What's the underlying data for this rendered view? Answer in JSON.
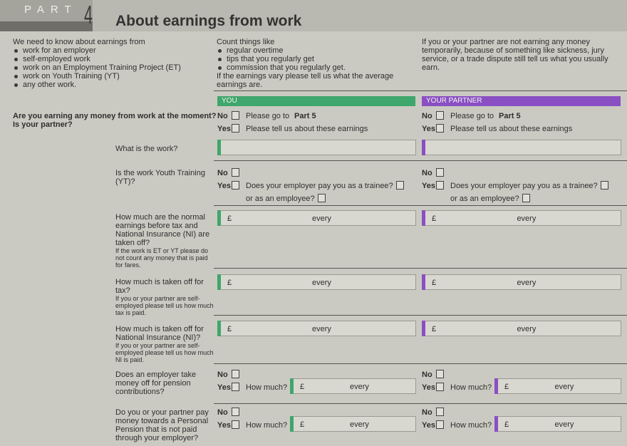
{
  "header": {
    "part": "PART",
    "number": "4",
    "title": "About earnings from work"
  },
  "intro": [
    {
      "lead": "We need to know about earnings from",
      "bullets": [
        "work for an employer",
        "self-employed work",
        "work on an Employment Training Project (ET)",
        "work on Youth Training (YT)",
        "any other work."
      ]
    },
    {
      "lead": "Count things like",
      "bullets": [
        "regular overtime",
        "tips that you regularly get",
        "commission that you regularly get."
      ],
      "tail": "If the earnings vary please tell us what the average earnings are."
    },
    {
      "lead": "If you or your partner are not earning any money temporarily, because of something like sickness, jury service, or a trade dispute still tell us what you usually earn."
    }
  ],
  "columns": [
    "YOU",
    "YOUR PARTNER"
  ],
  "labels": {
    "no": "No",
    "yes": "Yes",
    "pound": "£",
    "every": "every",
    "how_much": "How much?"
  },
  "questions": [
    {
      "question": "Are you earning any money from work at the moment?",
      "question2": "Is your partner?",
      "no_text": "Please go to",
      "no_ref": "Part 5",
      "yes_text": "Please tell us about these earnings"
    },
    {
      "question": "What is the work?"
    },
    {
      "question": "Is the work Youth Training (YT)?",
      "yes_text": "Does your employer pay you as a trainee?",
      "yes_text2": "or as an employee?"
    },
    {
      "question": "How much are the normal earnings before tax and National Insurance (NI) are taken off?",
      "note": "If the work is ET or YT please do not count any money that is paid for fares."
    },
    {
      "question": "How much is taken off for tax?",
      "note": "If you or your partner are self-employed please tell us how much tax is paid."
    },
    {
      "question": "How much is taken off for National Insurance (NI)?",
      "note": "If you or your partner are self-employed please tell us how much NI is paid."
    },
    {
      "question": "Does an employer take money off for pension contributions?"
    },
    {
      "question": "Do you or your partner pay money towards a Personal Pension that is not paid through your employer?"
    }
  ]
}
